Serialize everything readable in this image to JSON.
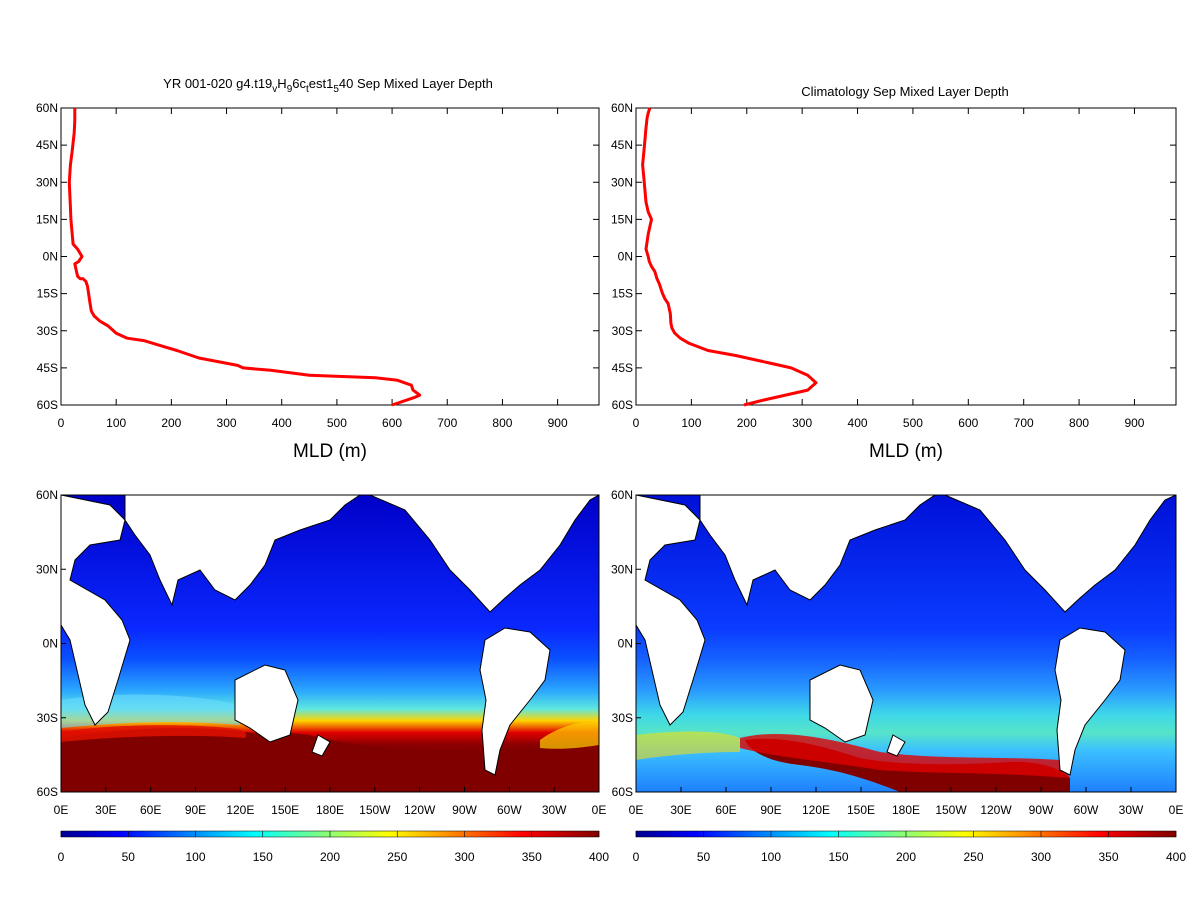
{
  "chart_data": [
    {
      "type": "line",
      "title": "YR 001-020 g4.t19_vH_96c_test1_540 Sep Mixed Layer Depth",
      "title_parts": [
        {
          "text": "YR 001-020 g4.t19",
          "shift": 0
        },
        {
          "text": "v",
          "shift": 1
        },
        {
          "text": "H",
          "shift": 0
        },
        {
          "text": "9",
          "shift": 1
        },
        {
          "text": "6c",
          "shift": 0
        },
        {
          "text": "t",
          "shift": 1
        },
        {
          "text": "est1",
          "shift": 0
        },
        {
          "text": "5",
          "shift": 1
        },
        {
          "text": "40 Sep Mixed Layer Depth",
          "shift": 0
        }
      ],
      "xlabel": "MLD (m)",
      "xlim": [
        0,
        975
      ],
      "ylim": [
        -60,
        60
      ],
      "xticks": [
        0,
        100,
        200,
        300,
        400,
        500,
        600,
        700,
        800,
        900
      ],
      "yticks": [
        60,
        45,
        30,
        15,
        0,
        -15,
        -30,
        -45,
        -60
      ],
      "ytick_labels": [
        "60N",
        "45N",
        "30N",
        "15N",
        "0N",
        "15S",
        "30S",
        "45S",
        "60S"
      ],
      "line_color": "#ff0000",
      "series": [
        {
          "x": [
            600,
            640,
            650,
            638,
            635,
            610,
            570,
            450,
            380,
            330,
            320,
            250,
            210,
            180,
            150,
            120,
            100,
            85,
            70,
            60,
            55,
            52,
            50,
            48,
            45,
            40,
            35,
            30,
            25,
            32,
            38,
            30,
            22,
            20,
            18,
            17,
            15,
            17,
            20,
            22,
            24,
            25,
            25
          ],
          "y": [
            -60,
            -57,
            -56,
            -54,
            -52,
            -50,
            -49,
            -48,
            -46,
            -45,
            -44,
            -41,
            -38,
            -36,
            -34,
            -33,
            -31,
            -28,
            -26,
            -24,
            -22,
            -18,
            -15,
            -12,
            -10,
            -9,
            -9,
            -8,
            -3,
            -2,
            0,
            3,
            5,
            10,
            15,
            20,
            30,
            37,
            42,
            46,
            50,
            55,
            60
          ]
        }
      ]
    },
    {
      "type": "line",
      "title": "Climatology Sep Mixed Layer Depth",
      "xlabel": "MLD (m)",
      "xlim": [
        0,
        975
      ],
      "ylim": [
        -60,
        60
      ],
      "xticks": [
        0,
        100,
        200,
        300,
        400,
        500,
        600,
        700,
        800,
        900
      ],
      "yticks": [
        60,
        45,
        30,
        15,
        0,
        -15,
        -30,
        -45,
        -60
      ],
      "ytick_labels": [
        "60N",
        "45N",
        "30N",
        "15N",
        "0N",
        "15S",
        "30S",
        "45S",
        "60S"
      ],
      "line_color": "#ff0000",
      "series": [
        {
          "x": [
            195,
            230,
            270,
            310,
            325,
            310,
            280,
            240,
            180,
            130,
            95,
            80,
            70,
            65,
            63,
            62,
            58,
            52,
            48,
            45,
            42,
            38,
            34,
            28,
            24,
            22,
            18,
            20,
            22,
            25,
            28,
            22,
            18,
            16,
            14,
            12,
            14,
            16,
            18,
            20,
            22,
            25
          ],
          "y": [
            -60,
            -58,
            -56,
            -54,
            -51,
            -48,
            -45,
            -43,
            -40,
            -38,
            -35,
            -33,
            -31,
            -29,
            -27,
            -23,
            -19,
            -17,
            -15,
            -13,
            -11,
            -9,
            -6,
            -4,
            -2,
            0,
            3,
            6,
            9,
            12,
            15,
            18,
            22,
            27,
            32,
            37,
            42,
            47,
            52,
            56,
            58,
            60
          ]
        }
      ]
    },
    {
      "type": "heatmap",
      "title": "",
      "xtick_labels": [
        "0E",
        "30E",
        "60E",
        "90E",
        "120E",
        "150E",
        "180E",
        "150W",
        "120W",
        "90W",
        "60W",
        "30W",
        "0E"
      ],
      "ytick_labels": [
        "60N",
        "30N",
        "0N",
        "30S",
        "60S"
      ],
      "ylim": [
        -60,
        60
      ],
      "xlim": [
        0,
        360
      ],
      "colorbar_ticks": [
        0,
        50,
        100,
        150,
        200,
        250,
        300,
        350,
        400
      ],
      "colorbar_range": [
        0,
        400
      ],
      "colormap": [
        "#00008f",
        "#0000ff",
        "#00ffff",
        "#ffff00",
        "#ff0000",
        "#800000"
      ],
      "summary": {
        "southern_ocean_lat": [
          -60,
          -38
        ],
        "southern_ocean_value": 400,
        "tropics_value": 40,
        "northern_value": 20
      }
    },
    {
      "type": "heatmap",
      "title": "",
      "xtick_labels": [
        "0E",
        "30E",
        "60E",
        "90E",
        "120E",
        "150E",
        "180E",
        "150W",
        "120W",
        "90W",
        "60W",
        "30W",
        "0E"
      ],
      "ytick_labels": [
        "60N",
        "30N",
        "0N",
        "30S",
        "60S"
      ],
      "ylim": [
        -60,
        60
      ],
      "xlim": [
        0,
        360
      ],
      "colorbar_ticks": [
        0,
        50,
        100,
        150,
        200,
        250,
        300,
        350,
        400
      ],
      "colorbar_range": [
        0,
        400
      ],
      "colormap": [
        "#00008f",
        "#0000ff",
        "#00ffff",
        "#ffff00",
        "#ff0000",
        "#800000"
      ],
      "summary": {
        "southern_ocean_lat": [
          -60,
          -40
        ],
        "southern_ocean_value": 320,
        "tropics_value": 40,
        "northern_value": 20
      }
    }
  ]
}
